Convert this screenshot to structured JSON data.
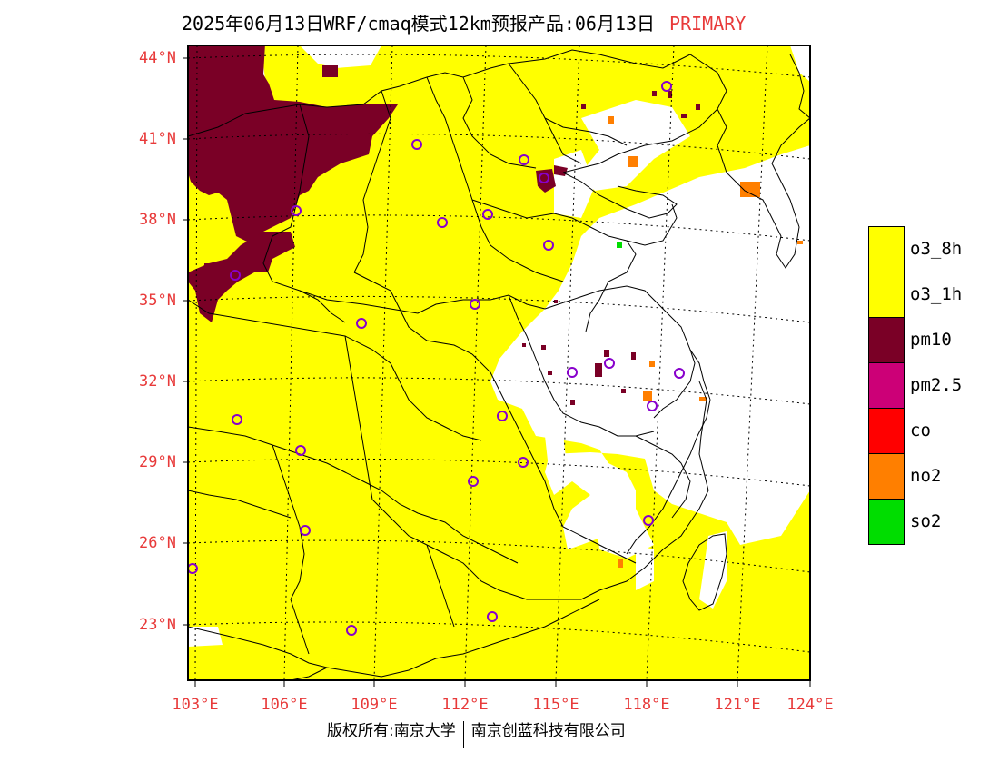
{
  "title": {
    "main": "2025年06月13日WRF/cmaq模式12km预报产品:06月13日",
    "tag": "PRIMARY"
  },
  "map": {
    "lat_labels": [
      "44°N",
      "41°N",
      "38°N",
      "35°N",
      "32°N",
      "29°N",
      "26°N",
      "23°N"
    ],
    "lon_labels": [
      "103°E",
      "106°E",
      "109°E",
      "112°E",
      "115°E",
      "118°E",
      "121°E",
      "124°E"
    ],
    "colors": {
      "o3": "#ffff00",
      "pm10": "#7a0026",
      "no2": "#ff7f00",
      "so2": "#00dd00",
      "marker": "#8800cc",
      "label": "#e83a3a"
    }
  },
  "legend": [
    {
      "label": "o3_8h",
      "color": "#ffff00"
    },
    {
      "label": "o3_1h",
      "color": "#ffff00"
    },
    {
      "label": "pm10",
      "color": "#7a0026"
    },
    {
      "label": "pm2.5",
      "color": "#cc0077"
    },
    {
      "label": "co",
      "color": "#ff0000"
    },
    {
      "label": "no2",
      "color": "#ff7f00"
    },
    {
      "label": "so2",
      "color": "#00dd00"
    }
  ],
  "footer": {
    "left": "版权所有:南京大学",
    "right": "南京创蓝科技有限公司"
  }
}
